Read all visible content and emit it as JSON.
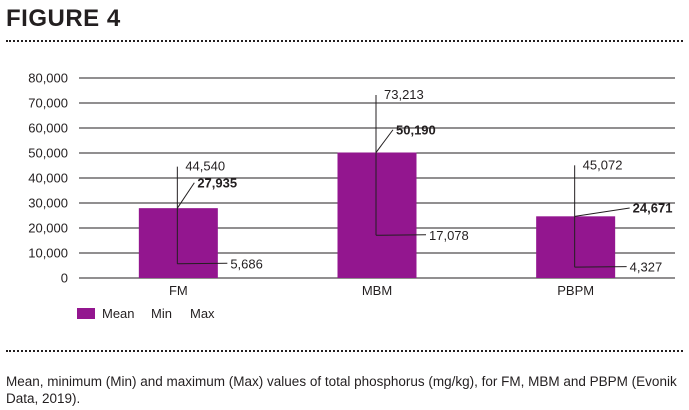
{
  "figure_label": "FIGURE 4",
  "caption": "Mean, minimum (Min) and maximum (Max) values of total phosphorus (mg/kg), for FM, MBM and PBPM (Evonik Data, 2019).",
  "colors": {
    "bar": "#93168f",
    "text": "#231f20",
    "axis": "#231f20"
  },
  "chart_data": {
    "type": "bar",
    "categories": [
      "FM",
      "MBM",
      "PBPM"
    ],
    "series": [
      {
        "name": "Mean",
        "values": [
          27935,
          50190,
          24671
        ],
        "labels": [
          "27,935",
          "50,190",
          "24,671"
        ]
      },
      {
        "name": "Min",
        "values": [
          5686,
          17078,
          4327
        ],
        "labels": [
          "5,686",
          "17,078",
          "4,327"
        ]
      },
      {
        "name": "Max",
        "values": [
          44540,
          73213,
          45072
        ],
        "labels": [
          "44,540",
          "73,213",
          "45,072"
        ]
      }
    ],
    "ylim": [
      0,
      80000
    ],
    "yticks": [
      0,
      10000,
      20000,
      30000,
      40000,
      50000,
      60000,
      70000,
      80000
    ],
    "ytick_labels": [
      "0",
      "10,000",
      "20,000",
      "30,000",
      "40,000",
      "50,000",
      "60,000",
      "70,000",
      "80,000"
    ],
    "grid": true,
    "legend_position": "bottom-left"
  }
}
